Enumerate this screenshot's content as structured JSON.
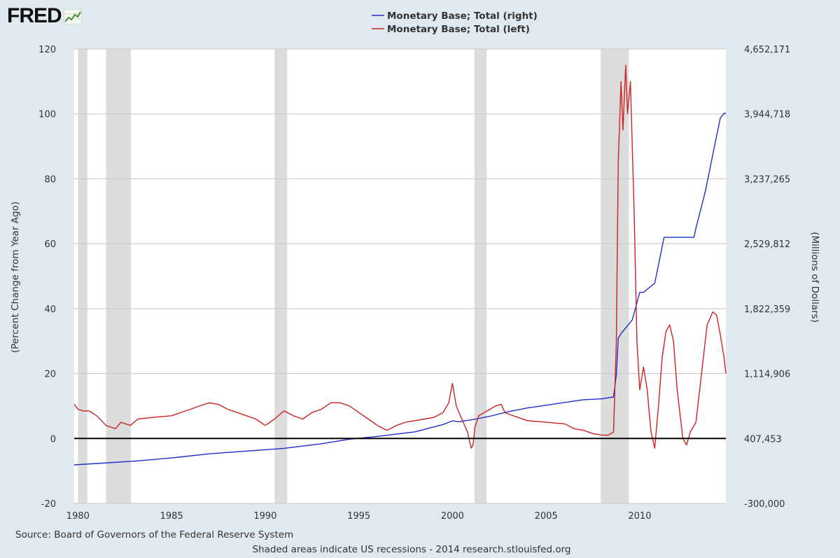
{
  "logo": {
    "text": "FRED",
    "icon": "chart-line-icon"
  },
  "footer": {
    "source": "Source: Board of Governors of the Federal Reserve System",
    "note": "Shaded areas indicate US recessions - 2014 research.stlouisfed.org"
  },
  "chart_data": {
    "type": "line",
    "ylabel": "(Percent Change from Year Ago)",
    "y2label": "(Millions of Dollars)",
    "grid": true,
    "legend_position": "top-center",
    "xlim": [
      1979.8,
      2014.6
    ],
    "ylim": [
      -20,
      120
    ],
    "y2lim": [
      -300000,
      4652171
    ],
    "x_ticks": [
      "1980",
      "1985",
      "1990",
      "1995",
      "2000",
      "2005",
      "2010"
    ],
    "x_tick_values": [
      1980,
      1985,
      1990,
      1995,
      2000,
      2005,
      2010
    ],
    "y_ticks": [
      "-20",
      "0",
      "20",
      "40",
      "60",
      "80",
      "100",
      "120"
    ],
    "y_tick_values": [
      -20,
      0,
      20,
      40,
      60,
      80,
      100,
      120
    ],
    "y2_ticks": [
      "-300,000",
      "407,453",
      "1,114,906",
      "1,822,359",
      "2,529,812",
      "3,237,265",
      "3,944,718",
      "4,652,171"
    ],
    "y2_tick_values": [
      -300000,
      407453,
      1114906,
      1822359,
      2529812,
      3237265,
      3944718,
      4652171
    ],
    "recessions": [
      [
        1980.0,
        1980.5
      ],
      [
        1981.5,
        1982.83
      ],
      [
        1990.5,
        1991.17
      ],
      [
        2001.17,
        2001.83
      ],
      [
        2007.92,
        2009.42
      ]
    ],
    "series": [
      {
        "name": "Monetary Base; Total (right)",
        "axis": "right",
        "color": "#1f2ecc",
        "x": [
          1979.8,
          1981,
          1983,
          1985,
          1987,
          1989,
          1991,
          1993,
          1994.5,
          1996,
          1998,
          1999.5,
          2000,
          2000.3,
          2001,
          2002,
          2003,
          2004,
          2005,
          2006,
          2007,
          2008,
          2008.6,
          2008.75,
          2008.85,
          2009.0,
          2009.2,
          2009.4,
          2009.6,
          2009.8,
          2010.0,
          2010.2,
          2010.5,
          2010.8,
          2011.0,
          2011.3,
          2011.6,
          2012.0,
          2012.5,
          2012.9,
          2013.0,
          2013.5,
          2014.0,
          2014.3,
          2014.5,
          2014.6
        ],
        "y": [
          120000,
          135000,
          160000,
          195000,
          240000,
          270000,
          300000,
          350000,
          400000,
          430000,
          480000,
          560000,
          600000,
          590000,
          610000,
          650000,
          700000,
          740000,
          770000,
          800000,
          830000,
          840000,
          860000,
          1100000,
          1500000,
          1550000,
          1600000,
          1650000,
          1700000,
          1850000,
          2000000,
          2000000,
          2050000,
          2100000,
          2300000,
          2600000,
          2600000,
          2600000,
          2600000,
          2600000,
          2700000,
          3100000,
          3600000,
          3900000,
          3950000,
          3950000
        ]
      },
      {
        "name": "Monetary Base; Total (left)",
        "axis": "left",
        "color": "#cc2222",
        "x": [
          1979.8,
          1980.0,
          1980.3,
          1980.6,
          1981.0,
          1981.5,
          1982.0,
          1982.3,
          1982.8,
          1983.2,
          1984,
          1985,
          1986,
          1986.5,
          1987.0,
          1987.5,
          1988,
          1989,
          1989.5,
          1990.0,
          1990.5,
          1991.0,
          1991.5,
          1992.0,
          1992.5,
          1993.0,
          1993.5,
          1994.0,
          1994.5,
          1995.0,
          1995.5,
          1996.0,
          1996.5,
          1997.0,
          1997.5,
          1998.0,
          1998.5,
          1999.0,
          1999.5,
          1999.8,
          2000.0,
          2000.2,
          2000.5,
          2000.8,
          2001.0,
          2001.1,
          2001.2,
          2001.4,
          2001.7,
          2002.0,
          2002.3,
          2002.6,
          2002.8,
          2003.0,
          2003.5,
          2004,
          2005,
          2006,
          2006.5,
          2007.0,
          2007.5,
          2008.0,
          2008.3,
          2008.6,
          2008.75,
          2008.85,
          2009.0,
          2009.1,
          2009.25,
          2009.35,
          2009.5,
          2009.7,
          2009.85,
          2010.0,
          2010.2,
          2010.4,
          2010.6,
          2010.8,
          2011.0,
          2011.2,
          2011.4,
          2011.6,
          2011.8,
          2012.0,
          2012.3,
          2012.5,
          2012.7,
          2013.0,
          2013.3,
          2013.6,
          2013.9,
          2014.1,
          2014.3,
          2014.5,
          2014.6
        ],
        "y": [
          10.5,
          9.0,
          8.5,
          8.5,
          7.0,
          4.0,
          3.0,
          5.0,
          4.0,
          6.0,
          6.5,
          7.0,
          9.0,
          10.0,
          11.0,
          10.5,
          9.0,
          7.0,
          6.0,
          4.0,
          6.0,
          8.5,
          7.0,
          6.0,
          8.0,
          9.0,
          11.0,
          11.0,
          10.0,
          8.0,
          6.0,
          4.0,
          2.5,
          4.0,
          5.0,
          5.5,
          6.0,
          6.5,
          8.0,
          11.0,
          17.0,
          10.0,
          6.0,
          2.0,
          -3.0,
          -2.0,
          3.5,
          7.0,
          8.0,
          9.0,
          10.0,
          10.5,
          8.0,
          7.5,
          6.5,
          5.5,
          5.0,
          4.5,
          3.0,
          2.5,
          1.5,
          1.0,
          1.0,
          2.0,
          30.0,
          85.0,
          110.0,
          95.0,
          115.0,
          100.0,
          110.0,
          70.0,
          30.0,
          15.0,
          22.0,
          15.0,
          2.0,
          -3.0,
          10.0,
          25.0,
          33.0,
          35.0,
          30.0,
          15.0,
          0.0,
          -2.0,
          2.0,
          5.0,
          20.0,
          35.0,
          39.0,
          38.0,
          32.0,
          25.0,
          20.0
        ]
      }
    ]
  }
}
